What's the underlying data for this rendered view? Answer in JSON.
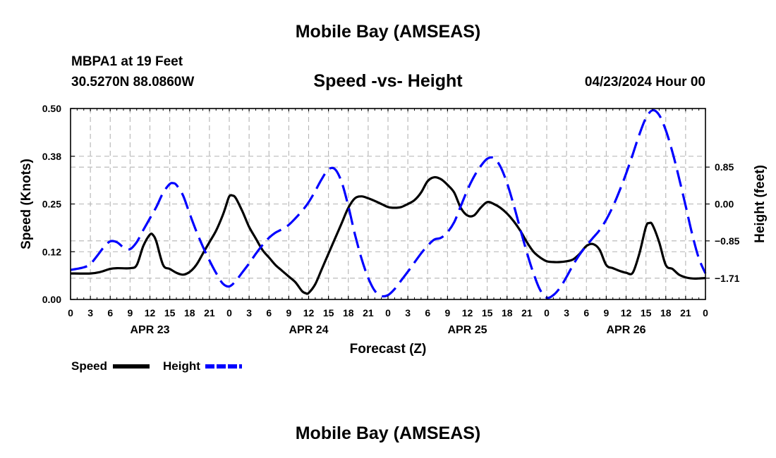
{
  "page_title": "Mobile Bay (AMSEAS)",
  "station": {
    "name_line": "MBPA1 at 19 Feet",
    "coords_line": "30.5270N  88.0860W"
  },
  "subtitle": "Speed -vs- Height",
  "datetime": "04/23/2024 Hour 00",
  "footer_title": "Mobile Bay (AMSEAS)",
  "chart_data": {
    "type": "line",
    "title": "Speed -vs- Height",
    "xlabel": "Forecast (Z)",
    "ylabel_left": "Speed (Knots)",
    "ylabel_right": "Height (feet)",
    "x_range_hours": [
      0,
      96
    ],
    "x_tick_step_hours": 3,
    "x_tick_labels": [
      "0",
      "3",
      "6",
      "9",
      "12",
      "15",
      "18",
      "21",
      "0",
      "3",
      "6",
      "9",
      "12",
      "15",
      "18",
      "21",
      "0",
      "3",
      "6",
      "9",
      "12",
      "15",
      "18",
      "21",
      "0",
      "3",
      "6",
      "9",
      "12",
      "15",
      "18",
      "21",
      "0"
    ],
    "day_labels": [
      {
        "hour": 12,
        "label": "APR 23"
      },
      {
        "hour": 36,
        "label": "APR 24"
      },
      {
        "hour": 60,
        "label": "APR 25"
      },
      {
        "hour": 84,
        "label": "APR 26"
      }
    ],
    "ylim_left": [
      0,
      0.5
    ],
    "left_ticks": [
      0.0,
      0.125,
      0.25,
      0.375,
      0.5
    ],
    "left_tick_labels": [
      "0.00",
      "0.12",
      "0.25",
      "0.38",
      "0.50"
    ],
    "ylim_right": [
      -2.2,
      2.2
    ],
    "right_ticks": [
      0.85,
      0.0,
      -0.85,
      -1.71
    ],
    "right_tick_labels": [
      "0.85",
      "0.00",
      "−0.85",
      "−1.71"
    ],
    "grid": true,
    "series": [
      {
        "name": "Speed",
        "axis": "left",
        "color": "#000000",
        "dash": "solid",
        "points": [
          [
            0,
            0.068
          ],
          [
            3,
            0.068
          ],
          [
            4.5,
            0.072
          ],
          [
            6,
            0.08
          ],
          [
            7,
            0.082
          ],
          [
            9,
            0.082
          ],
          [
            10,
            0.09
          ],
          [
            11,
            0.14
          ],
          [
            12,
            0.17
          ],
          [
            12.5,
            0.168
          ],
          [
            13,
            0.15
          ],
          [
            14,
            0.09
          ],
          [
            15,
            0.08
          ],
          [
            16,
            0.07
          ],
          [
            17,
            0.065
          ],
          [
            18,
            0.072
          ],
          [
            19,
            0.09
          ],
          [
            20,
            0.12
          ],
          [
            21,
            0.15
          ],
          [
            22,
            0.18
          ],
          [
            23,
            0.22
          ],
          [
            23.5,
            0.245
          ],
          [
            24,
            0.27
          ],
          [
            24.5,
            0.272
          ],
          [
            25,
            0.265
          ],
          [
            26,
            0.23
          ],
          [
            27,
            0.19
          ],
          [
            28,
            0.16
          ],
          [
            29,
            0.13
          ],
          [
            30,
            0.11
          ],
          [
            31,
            0.09
          ],
          [
            32,
            0.075
          ],
          [
            33,
            0.06
          ],
          [
            34,
            0.045
          ],
          [
            35,
            0.022
          ],
          [
            35.6,
            0.016
          ],
          [
            36,
            0.017
          ],
          [
            37,
            0.04
          ],
          [
            38,
            0.08
          ],
          [
            39,
            0.12
          ],
          [
            40,
            0.16
          ],
          [
            41,
            0.2
          ],
          [
            42,
            0.24
          ],
          [
            43,
            0.265
          ],
          [
            44,
            0.27
          ],
          [
            45,
            0.265
          ],
          [
            46,
            0.258
          ],
          [
            47,
            0.25
          ],
          [
            48,
            0.242
          ],
          [
            49,
            0.24
          ],
          [
            50,
            0.242
          ],
          [
            51,
            0.25
          ],
          [
            52,
            0.26
          ],
          [
            53,
            0.28
          ],
          [
            54,
            0.31
          ],
          [
            55,
            0.32
          ],
          [
            56,
            0.315
          ],
          [
            57,
            0.3
          ],
          [
            58,
            0.28
          ],
          [
            59,
            0.24
          ],
          [
            60,
            0.22
          ],
          [
            61,
            0.22
          ],
          [
            62,
            0.24
          ],
          [
            63,
            0.255
          ],
          [
            64,
            0.25
          ],
          [
            65,
            0.24
          ],
          [
            66,
            0.225
          ],
          [
            67,
            0.205
          ],
          [
            68,
            0.18
          ],
          [
            69,
            0.15
          ],
          [
            70,
            0.125
          ],
          [
            71,
            0.11
          ],
          [
            72,
            0.1
          ],
          [
            73,
            0.098
          ],
          [
            74,
            0.098
          ],
          [
            75,
            0.1
          ],
          [
            76,
            0.105
          ],
          [
            77,
            0.12
          ],
          [
            78,
            0.14
          ],
          [
            79,
            0.145
          ],
          [
            80,
            0.13
          ],
          [
            81,
            0.09
          ],
          [
            82,
            0.082
          ],
          [
            83,
            0.075
          ],
          [
            84,
            0.07
          ],
          [
            85,
            0.07
          ],
          [
            86,
            0.12
          ],
          [
            87,
            0.19
          ],
          [
            87.5,
            0.2
          ],
          [
            88,
            0.195
          ],
          [
            89,
            0.15
          ],
          [
            90,
            0.09
          ],
          [
            91,
            0.08
          ],
          [
            92,
            0.065
          ],
          [
            93,
            0.058
          ],
          [
            94,
            0.055
          ],
          [
            95,
            0.055
          ],
          [
            96,
            0.056
          ]
        ]
      },
      {
        "name": "Height",
        "axis": "right",
        "color": "#0000ff",
        "dash": "dashed",
        "points": [
          [
            0,
            -1.52
          ],
          [
            2,
            -1.46
          ],
          [
            3,
            -1.38
          ],
          [
            4,
            -1.2
          ],
          [
            5,
            -1.0
          ],
          [
            6,
            -0.86
          ],
          [
            7,
            -0.88
          ],
          [
            8,
            -1.0
          ],
          [
            9,
            -1.04
          ],
          [
            10,
            -0.88
          ],
          [
            11,
            -0.6
          ],
          [
            12,
            -0.33
          ],
          [
            13,
            -0.06
          ],
          [
            14,
            0.26
          ],
          [
            15,
            0.46
          ],
          [
            15.5,
            0.48
          ],
          [
            16,
            0.44
          ],
          [
            17,
            0.2
          ],
          [
            18,
            -0.22
          ],
          [
            19,
            -0.62
          ],
          [
            20,
            -0.98
          ],
          [
            21,
            -1.3
          ],
          [
            22,
            -1.59
          ],
          [
            23,
            -1.83
          ],
          [
            24,
            -1.9
          ],
          [
            25,
            -1.77
          ],
          [
            26,
            -1.57
          ],
          [
            27,
            -1.37
          ],
          [
            28,
            -1.15
          ],
          [
            29,
            -0.95
          ],
          [
            30,
            -0.78
          ],
          [
            31,
            -0.66
          ],
          [
            32,
            -0.58
          ],
          [
            33,
            -0.48
          ],
          [
            34,
            -0.33
          ],
          [
            35,
            -0.16
          ],
          [
            36,
            0.04
          ],
          [
            37,
            0.3
          ],
          [
            38,
            0.58
          ],
          [
            39,
            0.8
          ],
          [
            40,
            0.8
          ],
          [
            41,
            0.5
          ],
          [
            42,
            -0.05
          ],
          [
            43,
            -0.7
          ],
          [
            44,
            -1.26
          ],
          [
            45,
            -1.7
          ],
          [
            46,
            -2.0
          ],
          [
            47,
            -2.12
          ],
          [
            48,
            -2.1
          ],
          [
            49,
            -1.96
          ],
          [
            50,
            -1.76
          ],
          [
            51,
            -1.56
          ],
          [
            52,
            -1.35
          ],
          [
            53,
            -1.14
          ],
          [
            54,
            -0.96
          ],
          [
            55,
            -0.82
          ],
          [
            56,
            -0.78
          ],
          [
            57,
            -0.65
          ],
          [
            58,
            -0.42
          ],
          [
            59,
            -0.05
          ],
          [
            60,
            0.32
          ],
          [
            61,
            0.63
          ],
          [
            62,
            0.87
          ],
          [
            63,
            1.04
          ],
          [
            64,
            1.06
          ],
          [
            65,
            0.86
          ],
          [
            66,
            0.48
          ],
          [
            67,
            -0.02
          ],
          [
            68,
            -0.58
          ],
          [
            69,
            -1.12
          ],
          [
            70,
            -1.6
          ],
          [
            71,
            -1.98
          ],
          [
            72,
            -2.16
          ],
          [
            73,
            -2.1
          ],
          [
            74,
            -1.93
          ],
          [
            75,
            -1.68
          ],
          [
            76,
            -1.4
          ],
          [
            77,
            -1.16
          ],
          [
            78,
            -0.96
          ],
          [
            79,
            -0.78
          ],
          [
            80,
            -0.6
          ],
          [
            81,
            -0.36
          ],
          [
            82,
            -0.06
          ],
          [
            83,
            0.3
          ],
          [
            84,
            0.7
          ],
          [
            85,
            1.14
          ],
          [
            86,
            1.6
          ],
          [
            87,
            1.98
          ],
          [
            88,
            2.16
          ],
          [
            89,
            2.05
          ],
          [
            90,
            1.7
          ],
          [
            91,
            1.2
          ],
          [
            92,
            0.6
          ],
          [
            93,
            -0.04
          ],
          [
            94,
            -0.7
          ],
          [
            95,
            -1.25
          ],
          [
            96,
            -1.6
          ]
        ]
      }
    ],
    "legend": [
      {
        "label": "Speed",
        "color": "#000000",
        "dash": "solid"
      },
      {
        "label": "Height",
        "color": "#0000ff",
        "dash": "dashed"
      }
    ],
    "legend_position": "bottom-left"
  }
}
